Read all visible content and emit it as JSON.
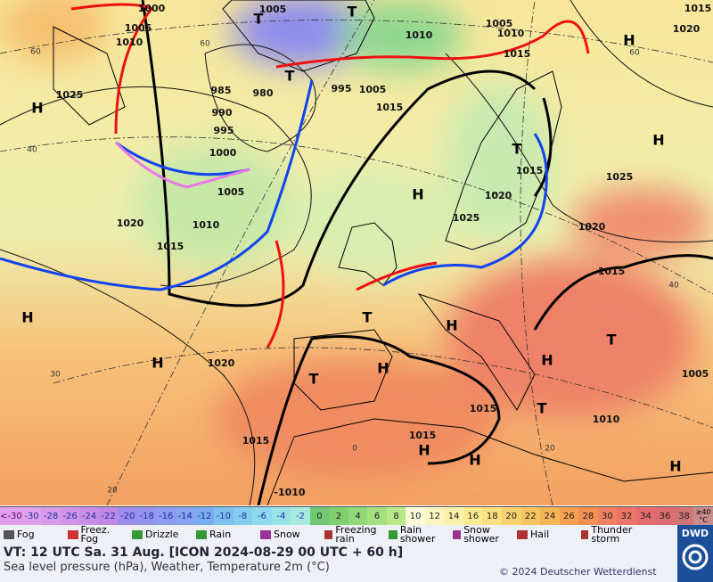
{
  "map": {
    "isobar_labels": [
      1000,
      1005,
      1010,
      1025,
      1005,
      1010,
      1005,
      1010,
      1015,
      1015,
      1020,
      985,
      980,
      990,
      995,
      1000,
      995,
      1005,
      1015,
      1005,
      1010,
      1020,
      1015,
      1015,
      1020,
      1025,
      1025,
      1020,
      1015,
      1020,
      1015,
      1015,
      1015,
      1010,
      1005,
      "-1010"
    ],
    "grid_labels": [
      60,
      40,
      30,
      20,
      60,
      0,
      20,
      40,
      60
    ],
    "centers": [
      "H",
      "H",
      "H",
      "H",
      "H",
      "H",
      "H",
      "H",
      "H",
      "H",
      "H",
      "H",
      "T",
      "T",
      "T",
      "T",
      "T",
      "T",
      "T",
      "T"
    ],
    "temperature_scale": {
      "low_label": "<-30",
      "values": [
        -30,
        -28,
        -26,
        -24,
        -22,
        -20,
        -18,
        -16,
        -14,
        -12,
        -10,
        -8,
        -6,
        -4,
        -2,
        0,
        2,
        4,
        6,
        8,
        10,
        12,
        14,
        16,
        18,
        20,
        22,
        24,
        26,
        28,
        30,
        32,
        34,
        36,
        38
      ],
      "high_label": "≥40 °C",
      "colors": [
        "#e0a0ee",
        "#d89aea",
        "#d094e8",
        "#c88ee6",
        "#c088e4",
        "#9c8cee",
        "#9494ee",
        "#8c9cf0",
        "#84a4f0",
        "#7cacf0",
        "#7cc0f0",
        "#84ccf0",
        "#8cd8ee",
        "#98e2e8",
        "#a8eae0",
        "#70c870",
        "#80d070",
        "#90d878",
        "#a4e080",
        "#b8e888",
        "#fbfbd8",
        "#fbf6c0",
        "#fbf0a8",
        "#fbea90",
        "#fae080",
        "#f9d270",
        "#f8c460",
        "#f6b458",
        "#f4a050",
        "#f19050",
        "#ef8060",
        "#ec7468",
        "#e56c6c",
        "#dc6c70",
        "#d07474"
      ],
      "high_color": "#c88c8c"
    },
    "weather_legend": [
      "Fog",
      "Freez. Fog",
      "Drizzle",
      "Rain",
      "Snow",
      "Freezing rain",
      "Rain shower",
      "Snow shower",
      "Hail",
      "Thunder storm"
    ],
    "footer": {
      "valid_time": "VT: 12 UTC Sa.  31 Aug. [ICON 2024-08-29  00 UTC + 60 h]",
      "description": "Sea level pressure (hPa), Weather, Temperature 2m (°C)",
      "copyright": "© 2024 Deutscher Wetterdienst",
      "logo": "DWD"
    }
  }
}
